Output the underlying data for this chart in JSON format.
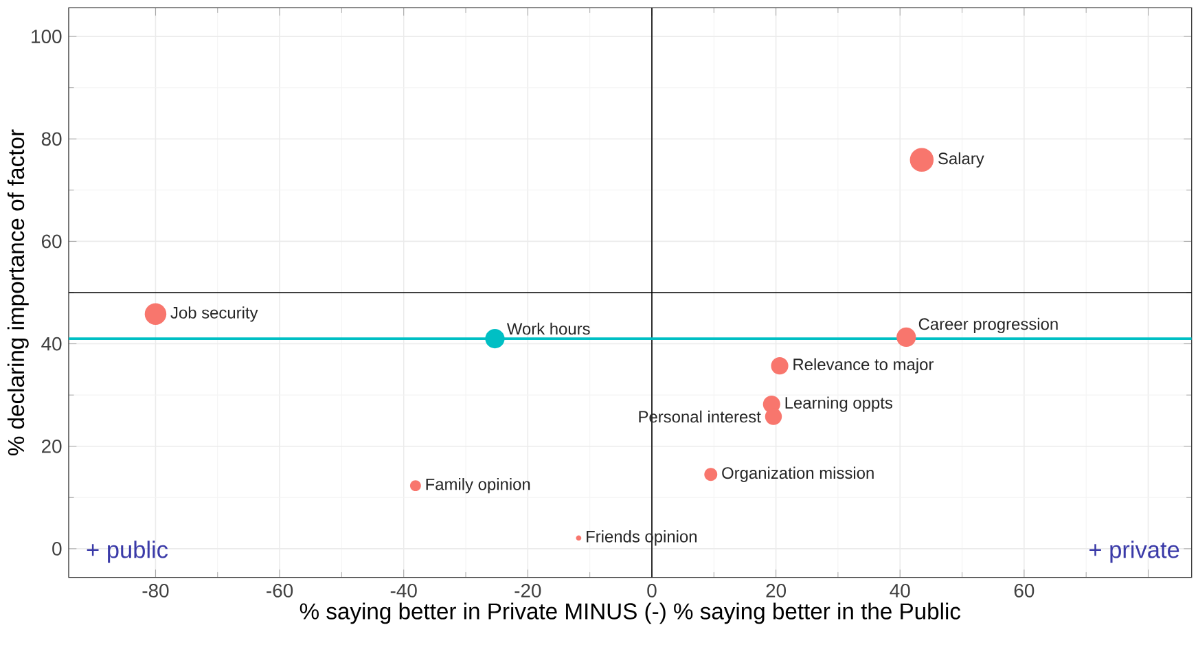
{
  "chart_data": {
    "type": "bubble",
    "xlabel": "% saying better in Private MINUS (-) % saying better in the Public",
    "ylabel": "% declaring importance of factor",
    "x": [
      -80,
      -25.3,
      43.5,
      41,
      20.6,
      19.3,
      19.6,
      9.5,
      -38.1,
      -11.8
    ],
    "values": [
      45.8,
      41,
      75.9,
      41.3,
      35.7,
      28.2,
      25.8,
      14.5,
      12.3,
      2.1
    ],
    "sizes": [
      0.83,
      0.67,
      1,
      0.67,
      0.53,
      0.53,
      0.5,
      0.3,
      0.21,
      0.05
    ],
    "colors": [
      "#f8766d",
      "#00bfc4",
      "#f8766d",
      "#f8766d",
      "#f8766d",
      "#f8766d",
      "#f8766d",
      "#f8766d",
      "#f8766d",
      "#f8766d"
    ],
    "xlim": [
      -94,
      87
    ],
    "ylim": [
      -5.6,
      105.6
    ],
    "xticks": [
      -80,
      -60,
      -40,
      -20,
      0,
      20,
      40,
      60,
      {
        "value": 80,
        "label": null
      }
    ],
    "yticks": [
      0,
      20,
      40,
      60,
      80,
      100
    ],
    "grid": true,
    "ref_lines": [
      {
        "axis": "x",
        "value": 0,
        "color": "#000000"
      },
      {
        "axis": "y",
        "value": 50,
        "color": "#000000"
      },
      {
        "axis": "y",
        "value": 41,
        "color": "#00bfc4"
      }
    ],
    "annotations": [
      {
        "text": "Job security",
        "x": -80,
        "y": 45.8
      },
      {
        "text": "Work hours",
        "x": -25.3,
        "y": 41
      },
      {
        "text": "Salary",
        "x": 43.5,
        "y": 75.9
      },
      {
        "text": "Career progression",
        "x": 41,
        "y": 41.3
      },
      {
        "text": "Relevance to major",
        "x": 20.6,
        "y": 35.7
      },
      {
        "text": "Learning oppts",
        "x": 19.3,
        "y": 28.2
      },
      {
        "text": "Personal interest",
        "x": 19.6,
        "y": 25.8
      },
      {
        "text": "Organization mission",
        "x": 9.5,
        "y": 14.5
      },
      {
        "text": "Family opinion",
        "x": -38.1,
        "y": 12.3
      },
      {
        "text": "Friends opinion",
        "x": -11.8,
        "y": 2.1
      },
      "+ public",
      "+ private"
    ]
  }
}
